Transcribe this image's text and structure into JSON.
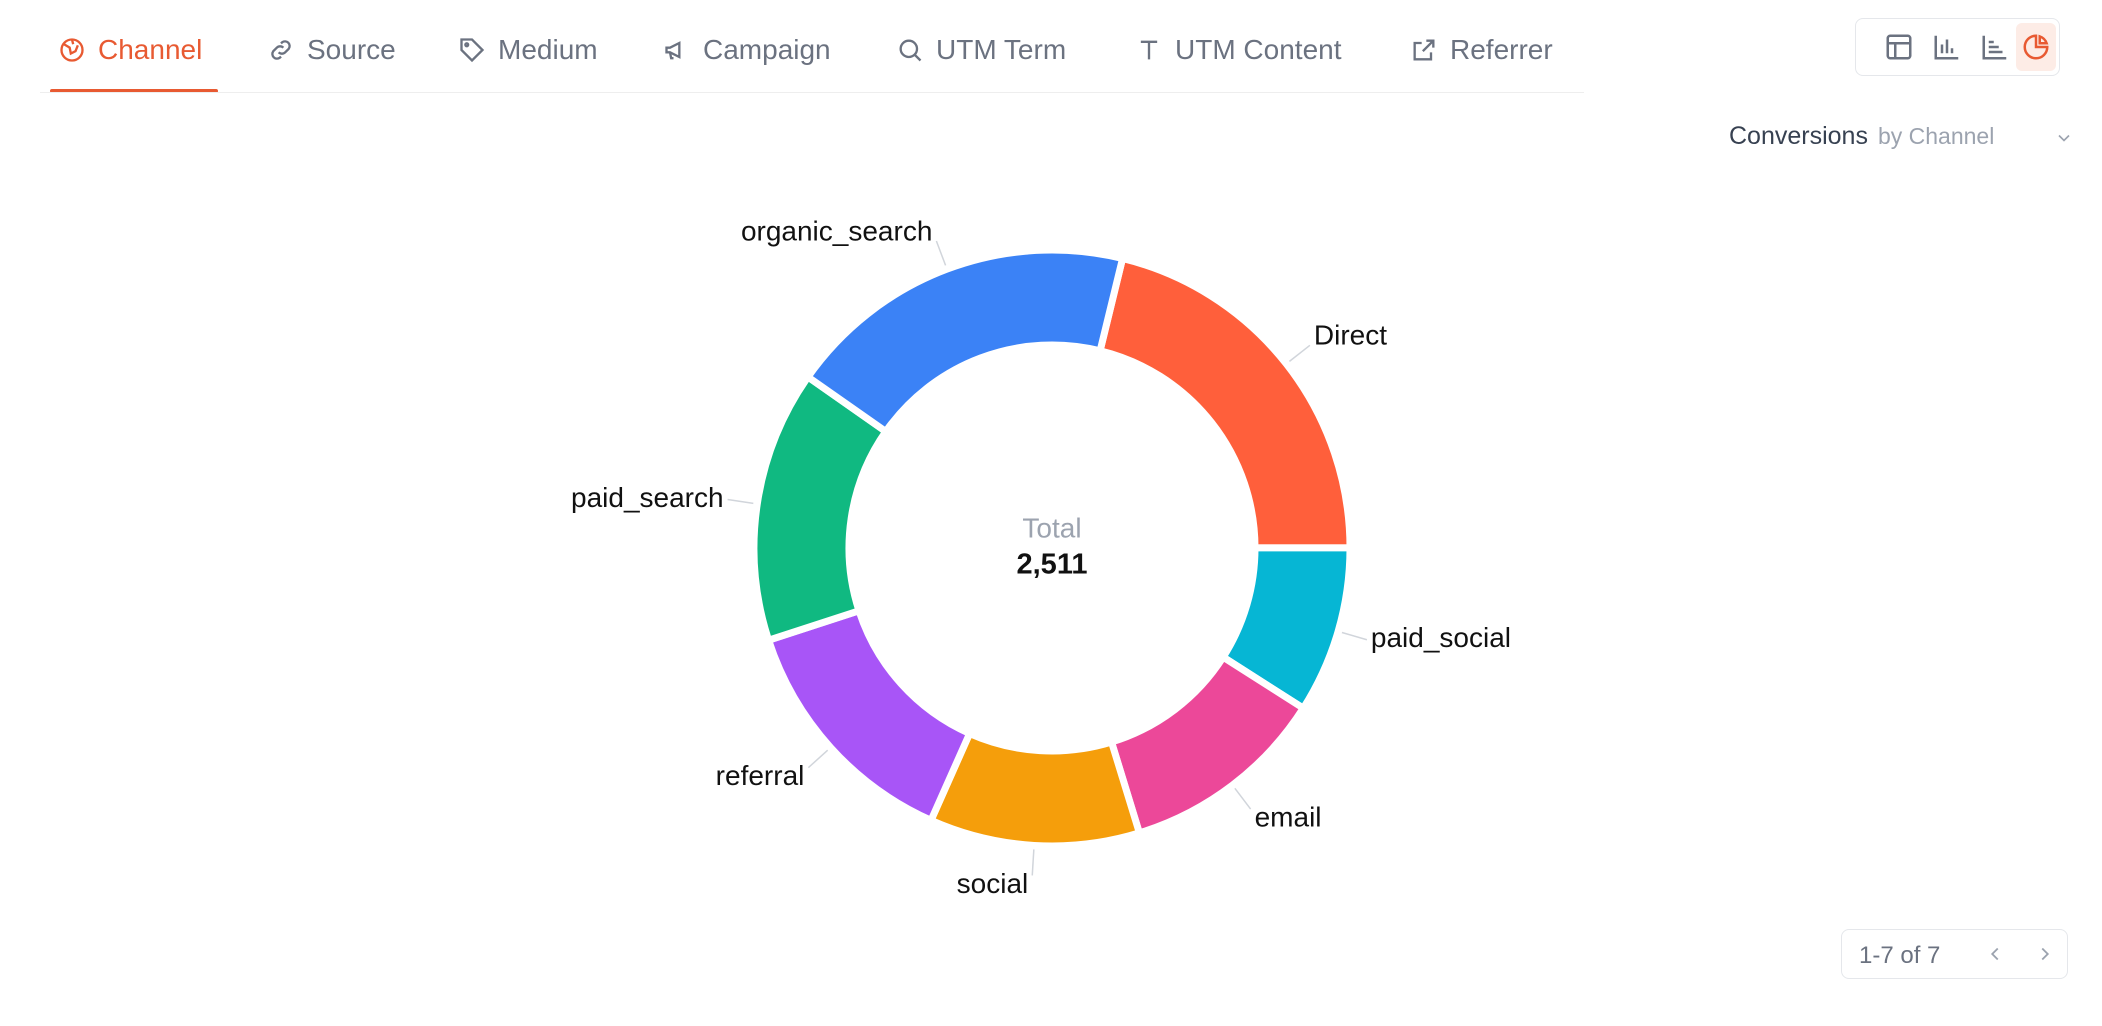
{
  "tabs": [
    "Channel",
    "Source",
    "Medium",
    "Campaign",
    "UTM Term",
    "UTM Content",
    "Referrer"
  ],
  "active_tab": 0,
  "header": {
    "metric": "Conversions",
    "grouping": "by Channel"
  },
  "chart_data": {
    "type": "pie",
    "categories": [
      "Direct",
      "paid_social",
      "email",
      "social",
      "referral",
      "paid_search",
      "organic_search"
    ],
    "values": [
      532,
      227,
      282,
      286,
      335,
      370,
      479
    ],
    "colors": [
      "#ff5f3b",
      "#06b6d4",
      "#ec4899",
      "#f59e0b",
      "#a855f7",
      "#10b981",
      "#3b82f6"
    ],
    "center_label": "Total",
    "center_value": "2,511"
  },
  "pagination": "1-7 of 7"
}
